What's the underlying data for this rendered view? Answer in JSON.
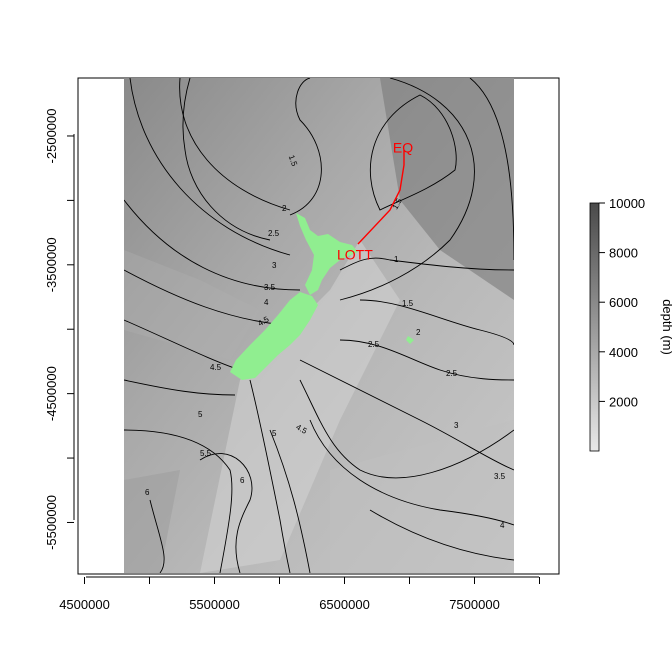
{
  "map": {
    "x_ticks": [
      "4500000",
      "5500000",
      "6500000",
      "7500000"
    ],
    "y_ticks": [
      "-2500000",
      "-3500000",
      "-4500000",
      "-5500000"
    ],
    "x_range": [
      4450000,
      8150000
    ],
    "y_range": [
      -5900000,
      -2050000
    ],
    "annotations": [
      {
        "label": "EQ",
        "x": 6950000,
        "y": -2600000
      },
      {
        "label": "LOTT",
        "x": 6580000,
        "y": -3430000
      }
    ],
    "contour_labels": [
      "1",
      "1.5",
      "2",
      "2.5",
      "3",
      "3.5",
      "4",
      "4.5",
      "5",
      "5.5",
      "6"
    ],
    "land_color": "#90ee90",
    "path_color": "#ff0000"
  },
  "legend": {
    "title": "depth (m)",
    "ticks": [
      "2000",
      "4000",
      "6000",
      "8000",
      "10000"
    ],
    "range": [
      0,
      10000
    ],
    "color_low": "#e8e8e8",
    "color_high": "#4a4a4a"
  }
}
